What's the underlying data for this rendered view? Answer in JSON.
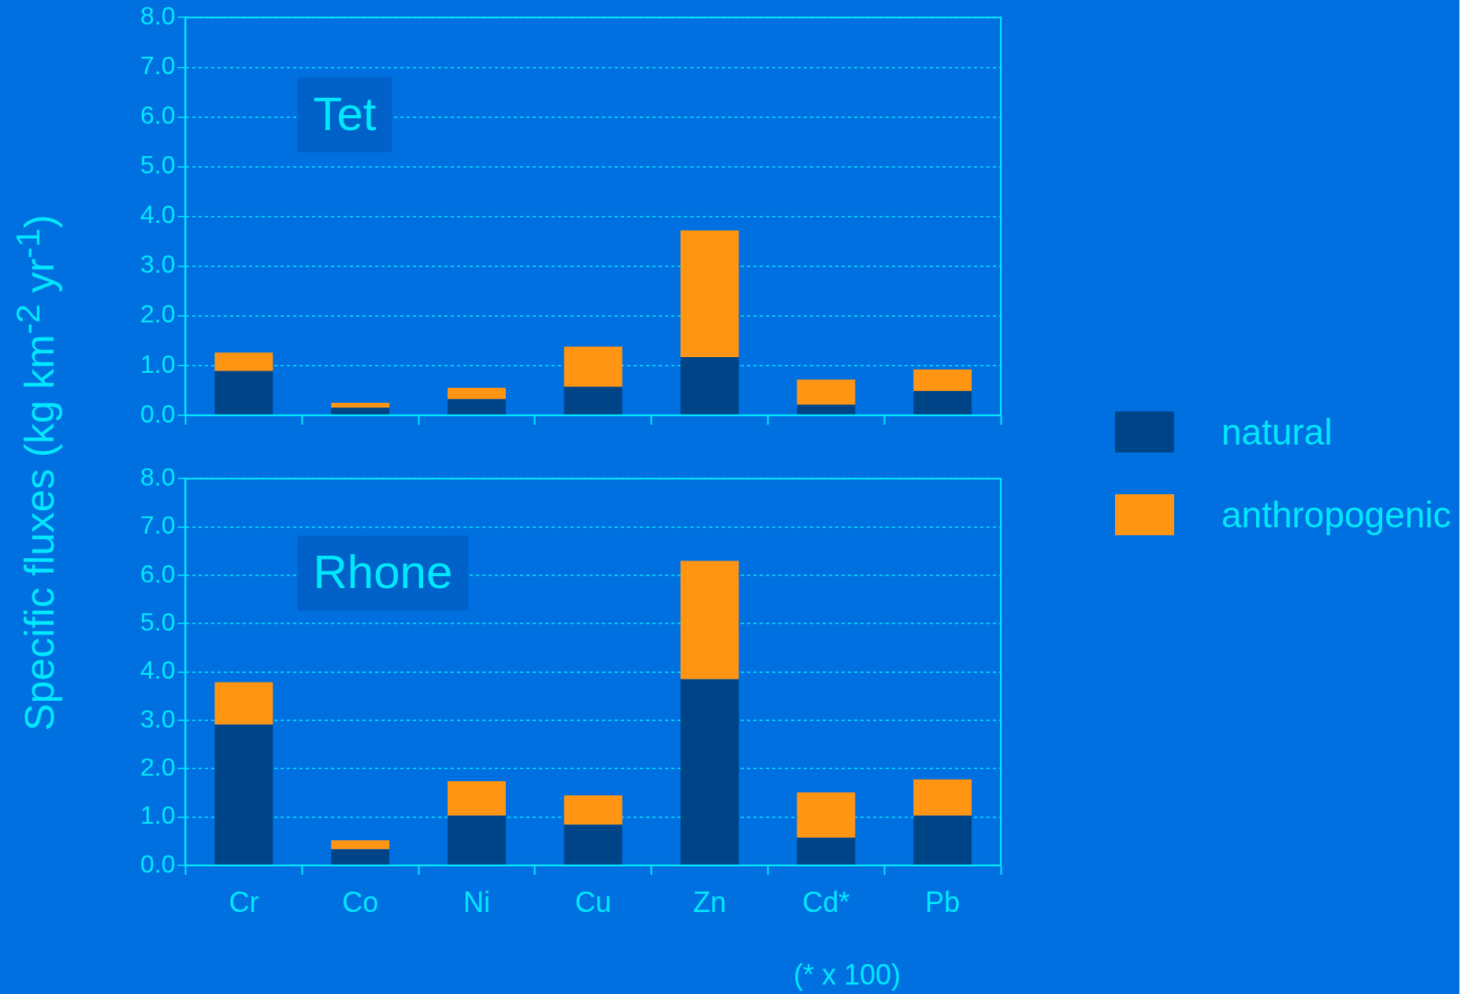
{
  "chart_data": [
    {
      "type": "bar",
      "title": "Tet",
      "ylabel": "Specific fluxes (kg km$^{-2}$ yr$^{-1}$)",
      "categories": [
        null,
        null,
        null,
        null,
        null,
        null,
        null
      ],
      "stacked": true,
      "series": [
        {
          "name": "natural",
          "color": "#004488",
          "values": [
            0.89,
            0.15,
            0.32,
            0.57,
            1.17,
            0.21,
            0.49
          ]
        },
        {
          "name": "anthropogenic",
          "color": "#ff9512",
          "values": [
            0.37,
            0.1,
            0.23,
            0.81,
            2.55,
            0.51,
            0.43
          ]
        }
      ],
      "ylim": [
        0,
        8
      ],
      "yticks": [
        {
          "value": 0,
          "label": "0.0"
        },
        {
          "value": 1,
          "label": "1.0"
        },
        {
          "value": 2,
          "label": "2.0"
        },
        {
          "value": 3,
          "label": "3.0"
        },
        {
          "value": 4,
          "label": "4.0"
        },
        {
          "value": 5,
          "label": "5.0"
        },
        {
          "value": 6,
          "label": "6.0"
        },
        {
          "value": 7,
          "label": "7.0"
        },
        {
          "value": 8,
          "label": "8.0"
        }
      ],
      "grid": "y",
      "legend": "right",
      "tick_labels": "y"
    },
    {
      "type": "bar",
      "title": "Rhone",
      "categories": [
        "Cr",
        "Co",
        "Ni",
        "Cu",
        "Zn",
        "Cd*",
        "Pb"
      ],
      "stacked": true,
      "series": [
        {
          "color": "#004488",
          "values": [
            2.91,
            0.33,
            1.03,
            0.84,
            3.85,
            0.57,
            1.03
          ]
        },
        {
          "color": "#ff9512",
          "values": [
            0.88,
            0.19,
            0.71,
            0.61,
            2.45,
            0.94,
            0.75
          ]
        }
      ],
      "ylim": [
        0,
        8
      ],
      "yticks": [
        {
          "value": 0,
          "label": "0.0"
        },
        {
          "value": 1,
          "label": "1.0"
        },
        {
          "value": 2,
          "label": "2.0"
        },
        {
          "value": 3,
          "label": "3.0"
        },
        {
          "value": 4,
          "label": "4.0"
        },
        {
          "value": 5,
          "label": "5.0"
        },
        {
          "value": 6,
          "label": "6.0"
        },
        {
          "value": 7,
          "label": "7.0"
        },
        {
          "value": 8,
          "label": "8.0"
        }
      ],
      "grid": "y",
      "annotations": [
        "(* x 100)"
      ]
    }
  ]
}
